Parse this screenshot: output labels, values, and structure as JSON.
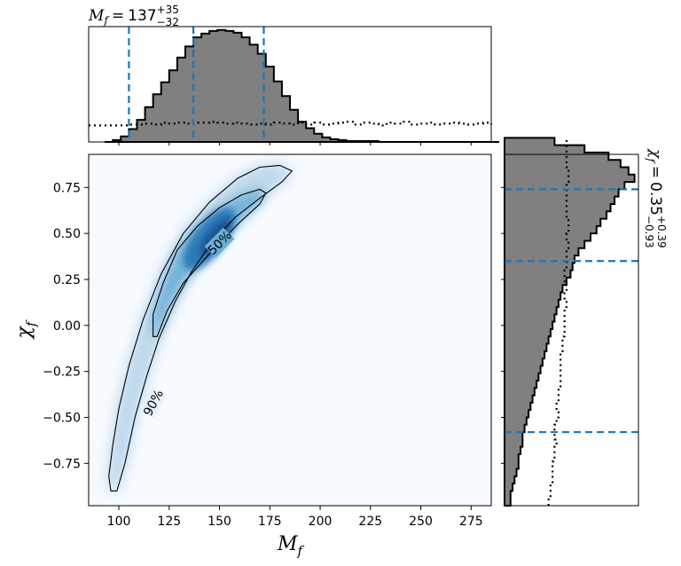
{
  "chart_data": [
    {
      "panel": "top-marginal",
      "type": "histogram",
      "variable": "M_f",
      "annotation": {
        "symbol": "M",
        "sub": "f",
        "equals": "=",
        "median": "137",
        "plus": "+35",
        "minus": "−32"
      },
      "xlim": [
        85,
        285
      ],
      "bin_edges_start": 93,
      "bin_width": 4,
      "posterior_counts": [
        0,
        2,
        6,
        14,
        24,
        38,
        52,
        65,
        78,
        92,
        104,
        114,
        118,
        121,
        122,
        121,
        119,
        114,
        106,
        96,
        82,
        66,
        50,
        35,
        22,
        15,
        9,
        5,
        3,
        2,
        1,
        1,
        1,
        1,
        0,
        0,
        0,
        0,
        0,
        0,
        0,
        0,
        0,
        0,
        0,
        0,
        0,
        0,
        0
      ],
      "prior_counts": [
        18,
        18,
        18,
        19,
        19,
        20,
        19,
        21,
        20,
        21,
        20,
        21,
        21,
        22,
        21,
        20,
        21,
        20,
        19,
        20,
        19,
        21,
        20,
        19,
        21,
        19,
        21,
        19,
        20,
        21,
        22,
        19,
        21,
        20,
        18,
        21,
        20,
        22,
        19,
        20,
        21,
        19,
        20,
        21,
        20,
        19,
        20,
        21,
        19
      ],
      "quantiles": [
        105,
        137,
        172
      ],
      "colors": {
        "fill": "#808080",
        "edge": "#000000",
        "quantile": "#1f77b4"
      }
    },
    {
      "panel": "main-2d",
      "type": "heatmap",
      "xlabel": {
        "symbol": "M",
        "sub": "f"
      },
      "ylabel": {
        "symbol": "χ",
        "sub": "f"
      },
      "xlim": [
        85,
        285
      ],
      "ylim": [
        -0.98,
        0.93
      ],
      "xticks": [
        "100",
        "125",
        "150",
        "175",
        "200",
        "225",
        "250",
        "275"
      ],
      "yticks": [
        "−0.75",
        "−0.50",
        "−0.25",
        "0.00",
        "0.25",
        "0.50",
        "0.75"
      ],
      "xtick_values": [
        100,
        125,
        150,
        175,
        200,
        225,
        250,
        275
      ],
      "ytick_values": [
        -0.75,
        -0.5,
        -0.25,
        0.0,
        0.25,
        0.5,
        0.75
      ],
      "contours": [
        {
          "label": "90%",
          "label_at": {
            "x": 117,
            "y": -0.42
          },
          "label_rotation_deg": -62
        },
        {
          "label": "50%",
          "label_at": {
            "x": 150,
            "y": 0.45
          },
          "label_rotation_deg": -45
        }
      ],
      "contour90_outline": [
        [
          96,
          -0.9
        ],
        [
          99,
          -0.9
        ],
        [
          103,
          -0.75
        ],
        [
          108,
          -0.5
        ],
        [
          114,
          -0.27
        ],
        [
          120,
          -0.07
        ],
        [
          128,
          0.13
        ],
        [
          136,
          0.29
        ],
        [
          146,
          0.45
        ],
        [
          158,
          0.59
        ],
        [
          171,
          0.7
        ],
        [
          181,
          0.78
        ],
        [
          186,
          0.84
        ],
        [
          180,
          0.87
        ],
        [
          170,
          0.86
        ],
        [
          159,
          0.8
        ],
        [
          145,
          0.67
        ],
        [
          132,
          0.5
        ],
        [
          121,
          0.28
        ],
        [
          112,
          0.03
        ],
        [
          105,
          -0.22
        ],
        [
          100,
          -0.45
        ],
        [
          97,
          -0.65
        ],
        [
          95,
          -0.82
        ],
        [
          96,
          -0.9
        ]
      ],
      "contour50_outline": [
        [
          117,
          -0.06
        ],
        [
          119,
          -0.06
        ],
        [
          124,
          0.08
        ],
        [
          132,
          0.23
        ],
        [
          141,
          0.34
        ],
        [
          150,
          0.45
        ],
        [
          160,
          0.56
        ],
        [
          170,
          0.66
        ],
        [
          173,
          0.72
        ],
        [
          170,
          0.74
        ],
        [
          161,
          0.71
        ],
        [
          150,
          0.64
        ],
        [
          139,
          0.54
        ],
        [
          129,
          0.41
        ],
        [
          122,
          0.23
        ],
        [
          117,
          0.06
        ],
        [
          117,
          -0.06
        ]
      ],
      "colors": {
        "cmap": "Blues",
        "contour": "#000000"
      }
    },
    {
      "panel": "right-marginal",
      "type": "histogram",
      "orientation": "horizontal",
      "variable": "χ_f",
      "annotation": {
        "symbol": "χ",
        "sub": "f",
        "equals": "=",
        "median": "0.35",
        "plus": "+0.39",
        "minus": "−0.93"
      },
      "ylim": [
        -0.98,
        0.93
      ],
      "bin_edges_start": -0.98,
      "bin_width": 0.04,
      "posterior_counts": [
        3,
        3,
        4,
        5,
        6,
        7,
        7,
        8,
        9,
        9,
        10,
        11,
        12,
        13,
        14,
        15,
        16,
        17,
        18,
        19,
        20,
        21,
        22,
        23,
        24,
        25,
        26,
        27,
        28,
        29,
        31,
        33,
        34,
        35,
        37,
        40,
        43,
        46,
        48,
        51,
        53,
        55,
        57,
        60,
        65,
        62,
        58,
        52,
        40,
        25
      ],
      "prior_counts": [
        22,
        23,
        23,
        24,
        24,
        24,
        25,
        25,
        26,
        25,
        25,
        26,
        27,
        26,
        27,
        27,
        28,
        28,
        28,
        28,
        28,
        29,
        29,
        30,
        30,
        30,
        30,
        31,
        30,
        31,
        30,
        30,
        31,
        31,
        31,
        32,
        31,
        32,
        32,
        31,
        31,
        31,
        31,
        31,
        32,
        32,
        31,
        31,
        31,
        31
      ],
      "quantiles": [
        -0.58,
        0.35,
        0.74
      ],
      "colors": {
        "fill": "#808080",
        "edge": "#000000",
        "quantile": "#1f77b4"
      }
    }
  ]
}
